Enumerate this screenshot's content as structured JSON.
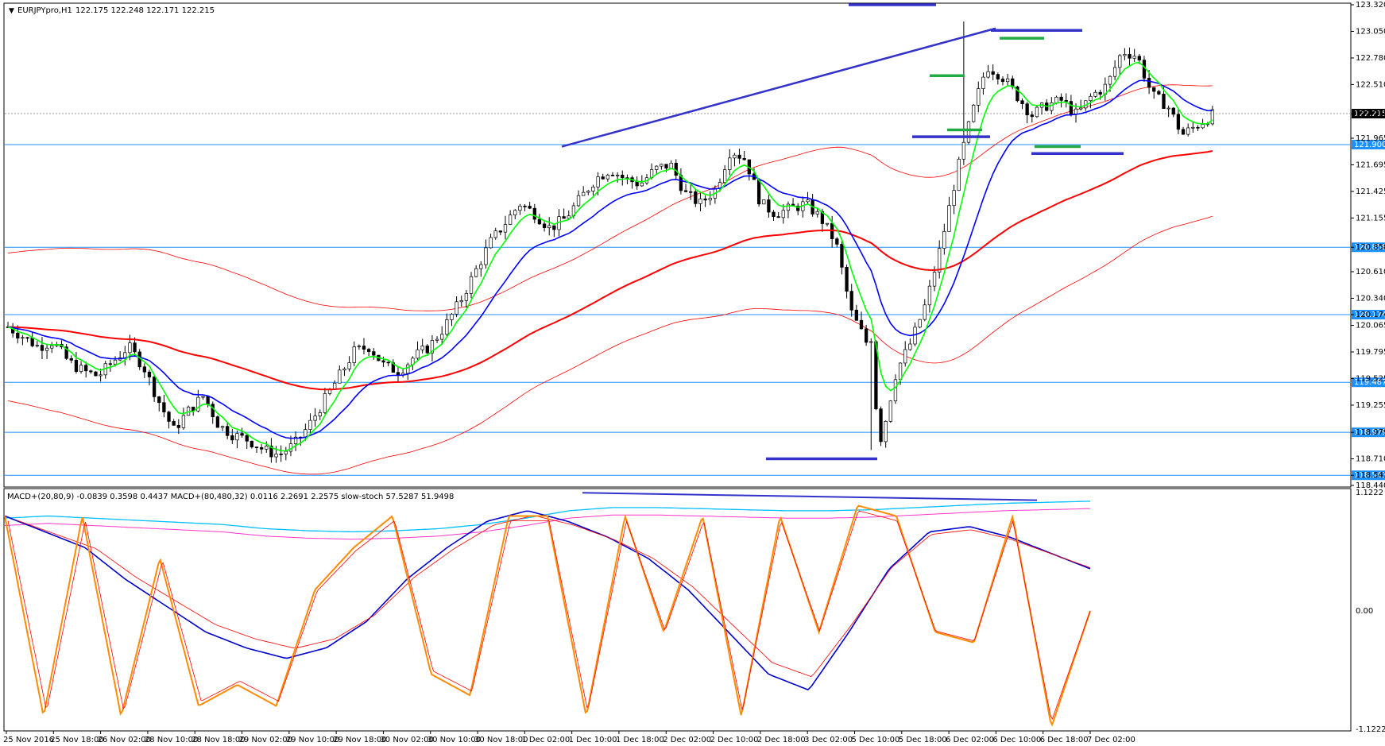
{
  "header": {
    "symbol": "EURJPYpro,H1",
    "ohlc": "122.175 122.248 122.171 122.215"
  },
  "indicator_header": "MACD+(20,80,9) -0.0839 0.3598 0.4437  MACD+(80,480,32) 0.0116 2.2691 2.2575  slow-stoch 57.5287 51.9498",
  "colors": {
    "bg": "#ffffff",
    "grid_line": "#1e90ff",
    "ma_fast": "#00ff00",
    "ma_mid": "#0000ff",
    "ma_slow": "#ff0000",
    "envelope": "#ff0000",
    "trend": "#3333cc",
    "level_green": "#22aa44",
    "stoch": "#ff8c00",
    "stoch_signal": "#ff0000",
    "macd_fast": "#0000cc",
    "macd_slow": "#00bfff",
    "macd_slow_signal": "#ff33cc"
  },
  "chart_data": [
    {
      "type": "candlestick",
      "ylim": [
        118.44,
        123.32
      ],
      "y_ticks": [
        "123.320",
        "123.050",
        "122.780",
        "122.510",
        "122.215",
        "121.965",
        "121.695",
        "121.425",
        "121.155",
        "120.858",
        "120.610",
        "120.340",
        "120.174",
        "120.065",
        "119.795",
        "119.525",
        "119.255",
        "118.979",
        "118.710",
        "118.543",
        "118.440"
      ],
      "x_ticks": [
        "25 Nov 2016",
        "25 Nov 18:00",
        "26 Nov 02:00",
        "28 Nov 10:00",
        "28 Nov 18:00",
        "29 Nov 02:00",
        "29 Nov 10:00",
        "29 Nov 18:00",
        "30 Nov 02:00",
        "30 Nov 10:00",
        "30 Nov 18:00",
        "1 Dec 02:00",
        "1 Dec 10:00",
        "1 Dec 18:00",
        "2 Dec 02:00",
        "2 Dec 10:00",
        "2 Dec 18:00",
        "3 Dec 02:00",
        "5 Dec 10:00",
        "5 Dec 18:00",
        "6 Dec 02:00",
        "6 Dec 10:00",
        "6 Dec 18:00",
        "7 Dec 02:00"
      ],
      "horizontal_levels": [
        {
          "price": 121.9,
          "label": "121.900"
        },
        {
          "price": 120.858,
          "label": "120.858"
        },
        {
          "price": 120.174,
          "label": "120.174"
        },
        {
          "price": 119.487,
          "label": "119.487"
        },
        {
          "price": 118.979,
          "label": "118.979"
        },
        {
          "price": 118.543,
          "label": "118.543"
        }
      ],
      "current_price": {
        "price": 122.215,
        "label": "122.215"
      },
      "close_path": [
        120.05,
        119.95,
        119.85,
        119.9,
        119.7,
        119.6,
        119.55,
        119.7,
        119.85,
        119.65,
        119.3,
        119.0,
        119.2,
        119.35,
        119.05,
        118.95,
        118.9,
        118.8,
        118.75,
        118.85,
        119.05,
        119.3,
        119.55,
        119.8,
        119.85,
        119.65,
        119.6,
        119.75,
        119.85,
        120.05,
        120.3,
        120.6,
        120.9,
        121.1,
        121.3,
        121.2,
        121.05,
        121.15,
        121.35,
        121.55,
        121.65,
        121.55,
        121.5,
        121.65,
        121.7,
        121.4,
        121.3,
        121.45,
        121.85,
        121.75,
        121.3,
        121.2,
        121.25,
        121.3,
        121.15,
        120.9,
        120.2,
        119.9,
        118.9,
        119.6,
        119.9,
        120.3,
        120.9,
        121.6,
        122.2,
        122.7,
        122.6,
        122.4,
        122.2,
        122.3,
        122.35,
        122.2,
        122.4,
        122.5,
        122.85,
        122.8,
        122.4,
        122.3,
        122.0,
        122.1,
        122.2
      ]
    },
    {
      "type": "line",
      "title": "MACD+ / slow-stoch",
      "ylim": [
        -1.1222,
        1.1222
      ],
      "y_ticks": [
        "1.1222",
        "0.00",
        "-1.1222"
      ],
      "series": [
        {
          "name": "slow-stoch",
          "values": [
            0.9,
            -1.0,
            0.9,
            -1.0,
            0.5,
            -0.9,
            -0.7,
            -0.9,
            0.2,
            0.6,
            0.9,
            -0.6,
            -0.8,
            0.9,
            0.9,
            -1.0,
            0.9,
            -0.2,
            0.9,
            -1.0,
            0.9,
            -0.2,
            1.0,
            0.9,
            -0.2,
            -0.3,
            0.9,
            -1.1,
            0.0
          ]
        },
        {
          "name": "MACD+(20,80,9)",
          "values": [
            0.9,
            0.75,
            0.6,
            0.3,
            0.05,
            -0.2,
            -0.35,
            -0.45,
            -0.35,
            -0.1,
            0.3,
            0.6,
            0.85,
            0.95,
            0.85,
            0.7,
            0.5,
            0.2,
            -0.2,
            -0.6,
            -0.75,
            -0.2,
            0.4,
            0.75,
            0.8,
            0.7,
            0.55,
            0.4
          ]
        },
        {
          "name": "MACD+(80,480,32)",
          "values": [
            0.88,
            0.9,
            0.88,
            0.86,
            0.84,
            0.82,
            0.78,
            0.76,
            0.75,
            0.76,
            0.78,
            0.82,
            0.88,
            0.95,
            0.98,
            0.98,
            0.97,
            0.96,
            0.95,
            0.95,
            0.96,
            0.98,
            1.0,
            1.02,
            1.03,
            1.04
          ]
        }
      ]
    }
  ]
}
